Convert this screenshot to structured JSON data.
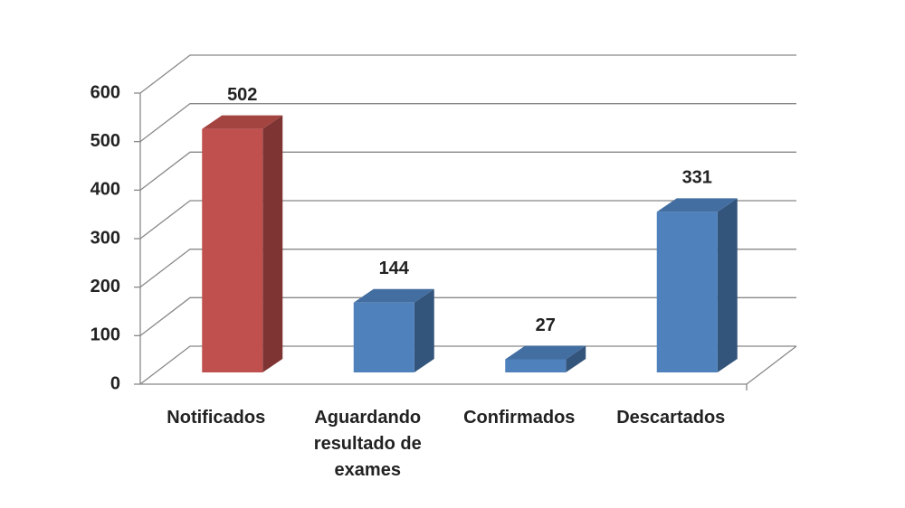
{
  "chart_data": {
    "type": "bar3d",
    "categories": [
      "Notificados",
      "Aguardando resultado de exames",
      "Confirmados",
      "Descartados"
    ],
    "values": [
      502,
      144,
      27,
      331
    ],
    "colors": [
      "#c0504d",
      "#4f81bd",
      "#4f81bd",
      "#4f81bd"
    ],
    "ylim": [
      0,
      600
    ],
    "yticks": [
      0,
      100,
      200,
      300,
      400,
      500,
      600
    ],
    "grid": true
  }
}
